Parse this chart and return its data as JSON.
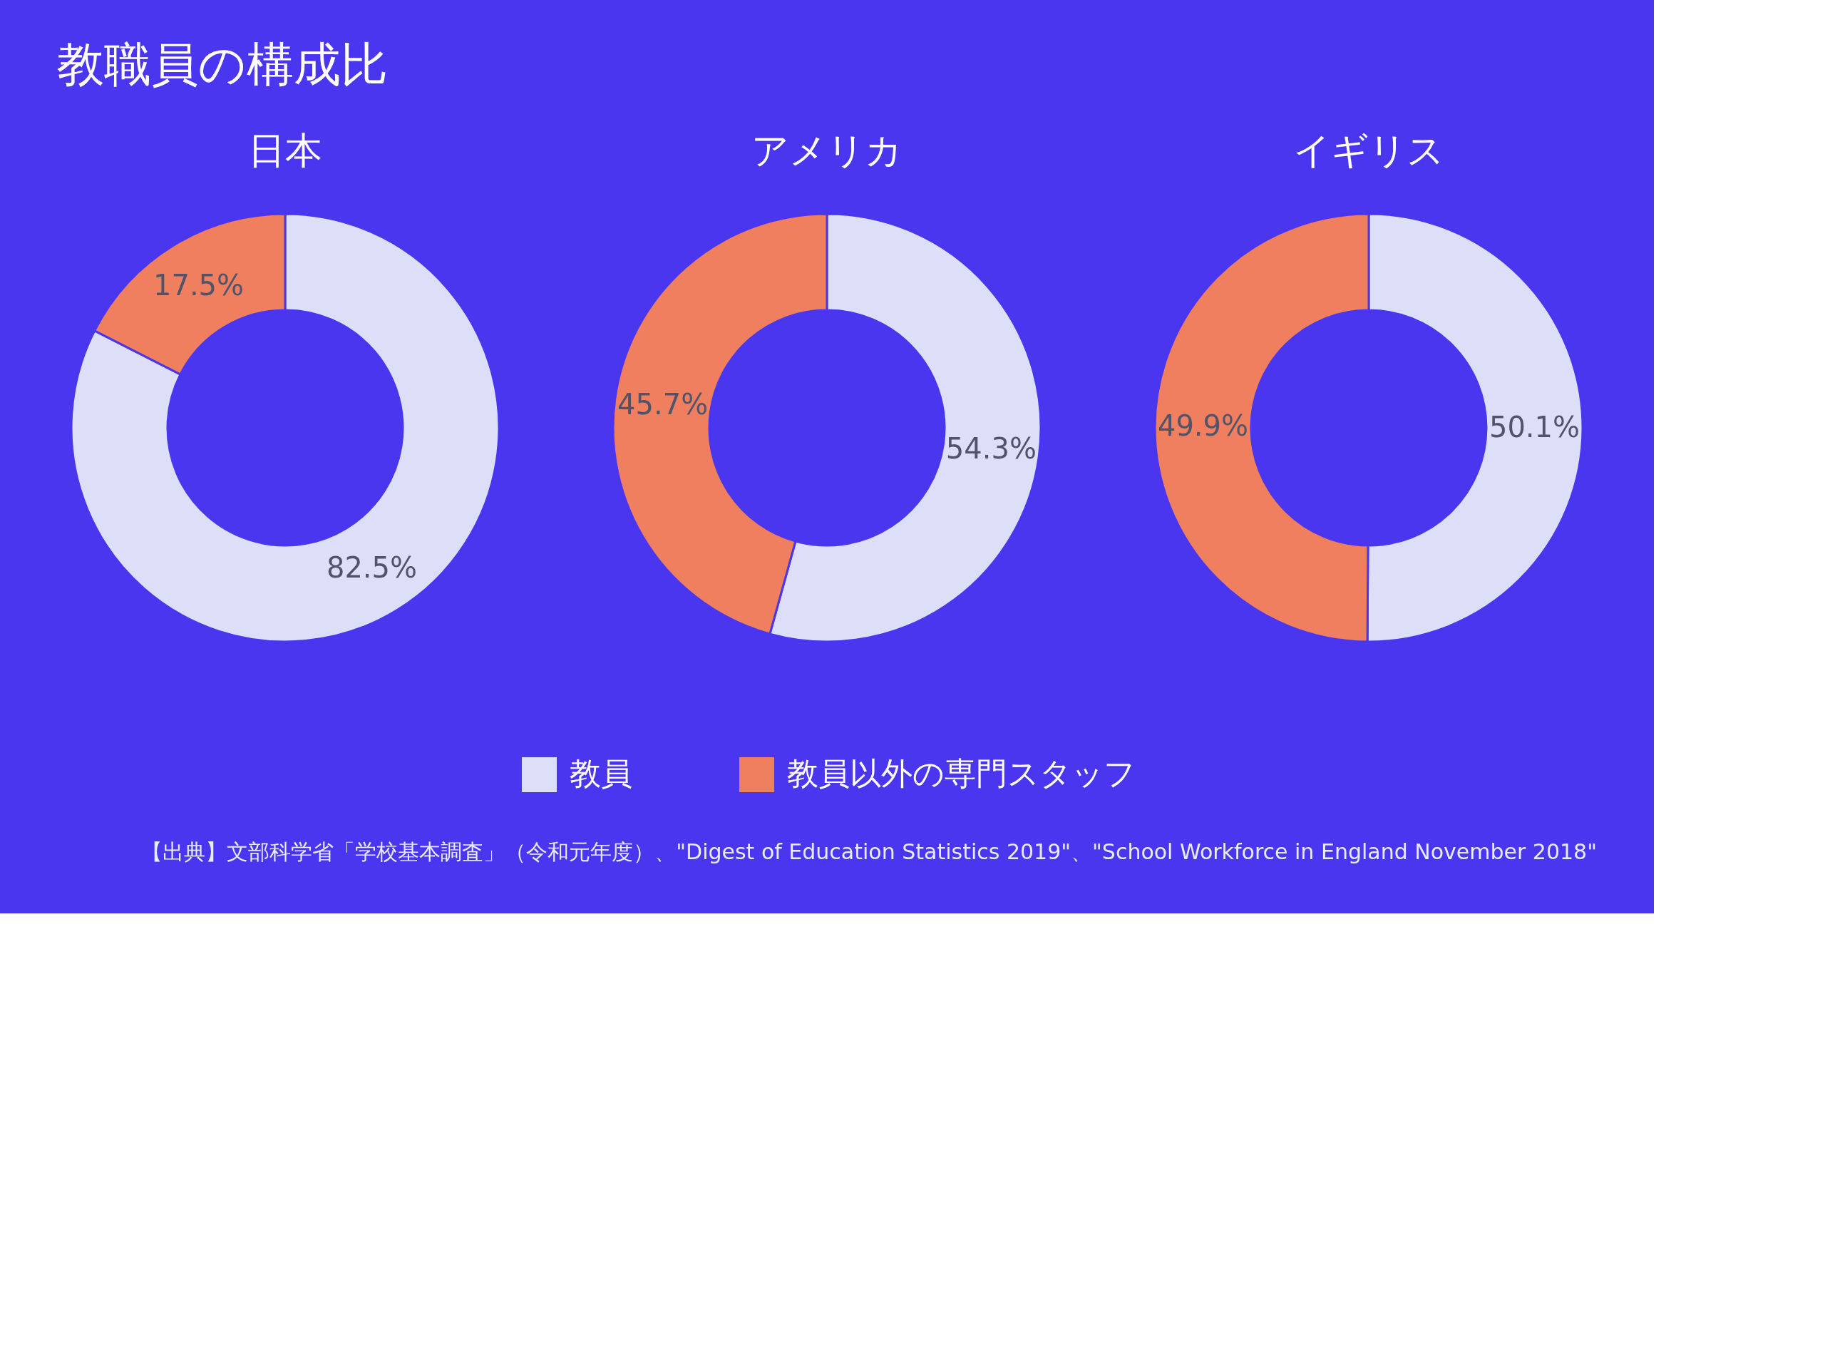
{
  "chart_data": {
    "type": "donut",
    "title": "教職員の構成比",
    "categories": [
      "教員",
      "教員以外の専門スタッフ"
    ],
    "colors": [
      "#dcdff7",
      "#ef7f5f"
    ],
    "series": [
      {
        "name": "日本",
        "values": [
          82.5,
          17.5
        ],
        "value_labels": [
          "82.5%",
          "17.5%"
        ]
      },
      {
        "name": "アメリカ",
        "values": [
          54.3,
          45.7
        ],
        "value_labels": [
          "54.3%",
          "45.7%"
        ]
      },
      {
        "name": "イギリス",
        "values": [
          50.1,
          49.9
        ],
        "value_labels": [
          "50.1%",
          "49.9%"
        ]
      }
    ],
    "legend": "bottom",
    "annotations": [
      "【出典】文部科学省「学校基本調査」（令和元年度）、\"Digest of Education Statistics 2019\"、\"School Workforce in England November 2018\""
    ]
  }
}
